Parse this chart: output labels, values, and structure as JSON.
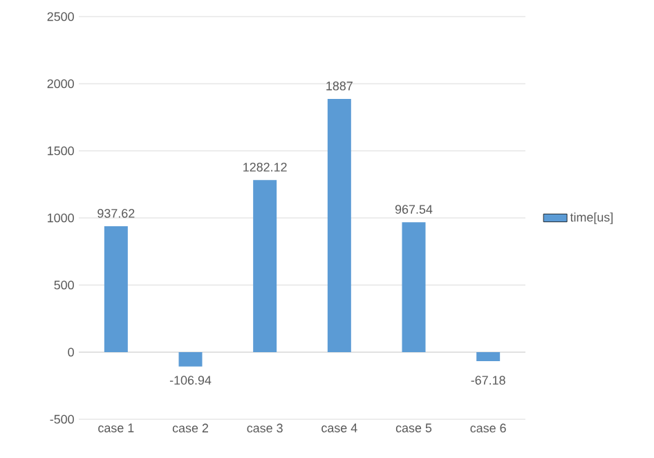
{
  "chart_data": {
    "type": "bar",
    "categories": [
      "case 1",
      "case 2",
      "case 3",
      "case 4",
      "case 5",
      "case 6"
    ],
    "series": [
      {
        "name": "time[us]",
        "color": "#5b9bd5",
        "values": [
          937.62,
          -106.94,
          1282.12,
          1887,
          967.54,
          -67.18
        ]
      }
    ],
    "ylim": [
      -500,
      2500
    ],
    "yticks": [
      -500,
      0,
      500,
      1000,
      1500,
      2000,
      2500
    ],
    "grid": "y",
    "legend": "right",
    "data_labels": true
  }
}
